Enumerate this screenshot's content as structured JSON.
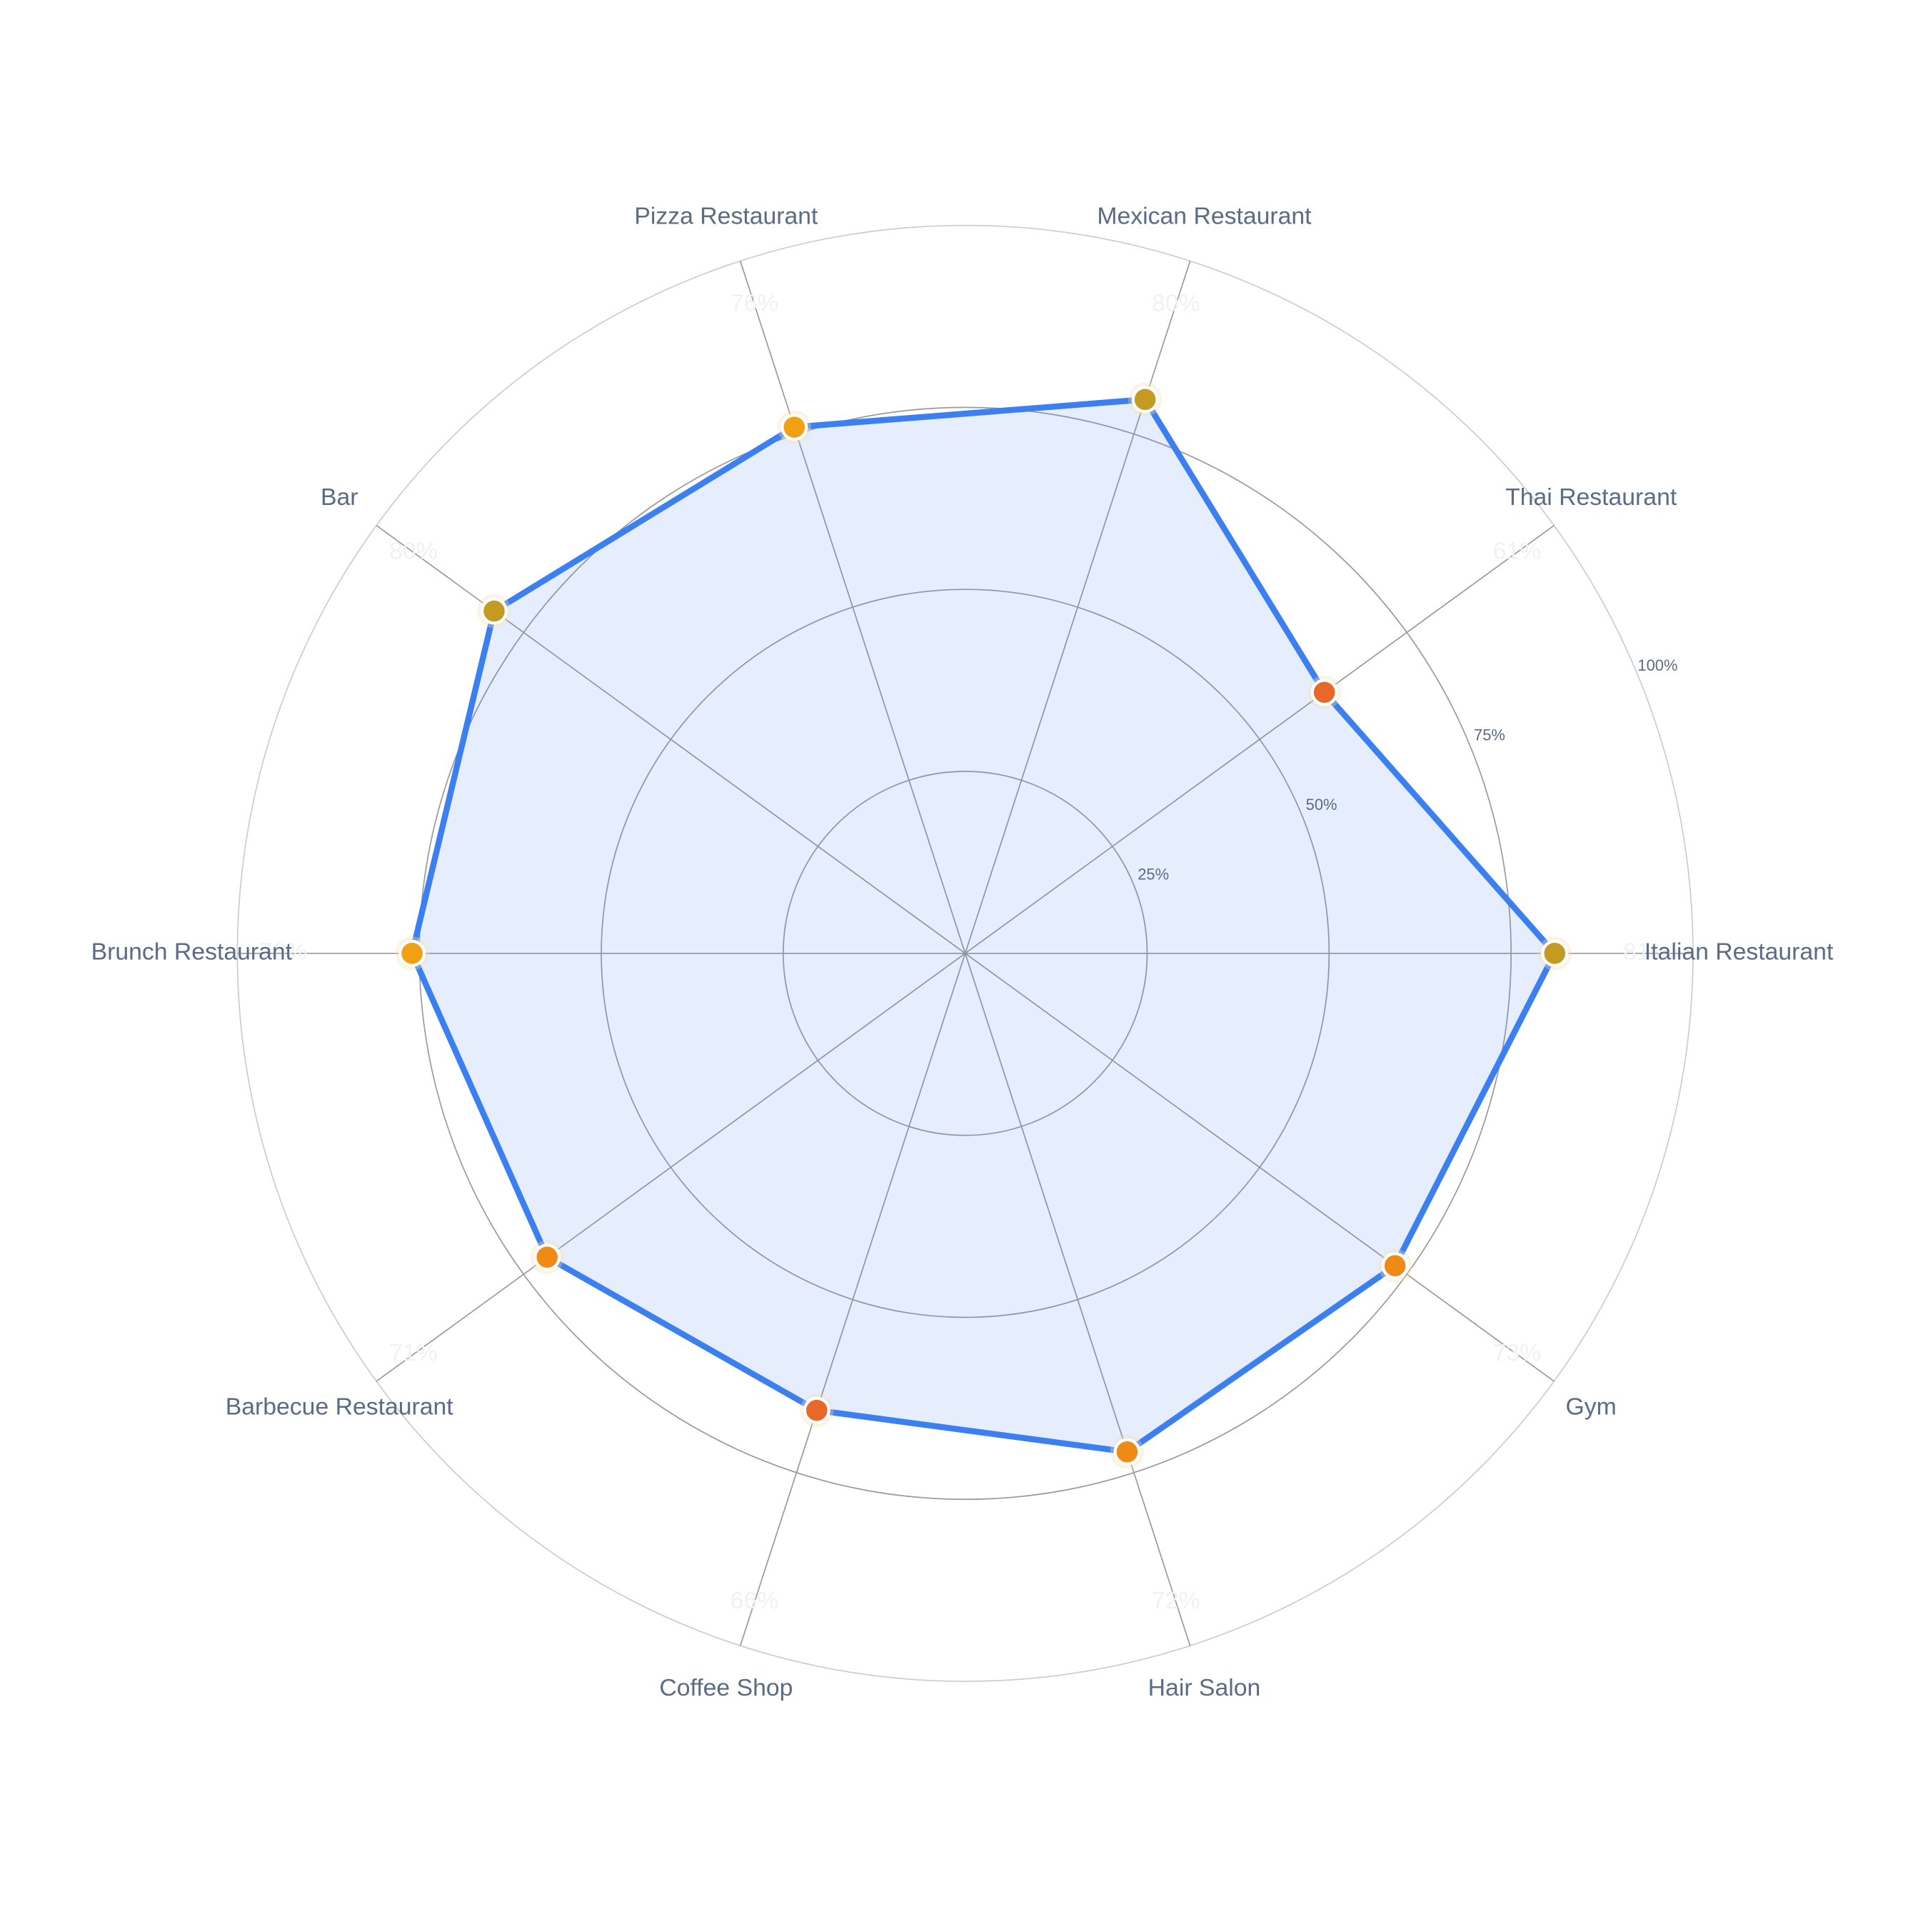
{
  "chart_data": {
    "type": "radar",
    "categories": [
      "Italian Restaurant",
      "Thai Restaurant",
      "Mexican Restaurant",
      "Pizza Restaurant",
      "Bar",
      "Brunch Restaurant",
      "Barbecue Restaurant",
      "Coffee Shop",
      "Hair Salon",
      "Gym"
    ],
    "values": [
      81,
      61,
      80,
      76,
      80,
      76,
      71,
      66,
      72,
      73
    ],
    "value_labels": [
      "81%",
      "61%",
      "80%",
      "76%",
      "80%",
      "76%",
      "71%",
      "66%",
      "72%",
      "73%"
    ],
    "color": "#3b7ff0",
    "marker_colors": [
      "#c49a22",
      "#e8682a",
      "#c49a22",
      "#f0a010",
      "#c49a22",
      "#f0a010",
      "#ee8a15",
      "#e8682a",
      "#ee8a15",
      "#ee8a15"
    ],
    "rlim": [
      0,
      100
    ],
    "rticks": [
      {
        "value": 25,
        "label": "25%"
      },
      {
        "value": 50,
        "label": "50%"
      },
      {
        "value": 75,
        "label": "75%"
      },
      {
        "value": 100,
        "label": "100%"
      }
    ],
    "grid": true
  }
}
